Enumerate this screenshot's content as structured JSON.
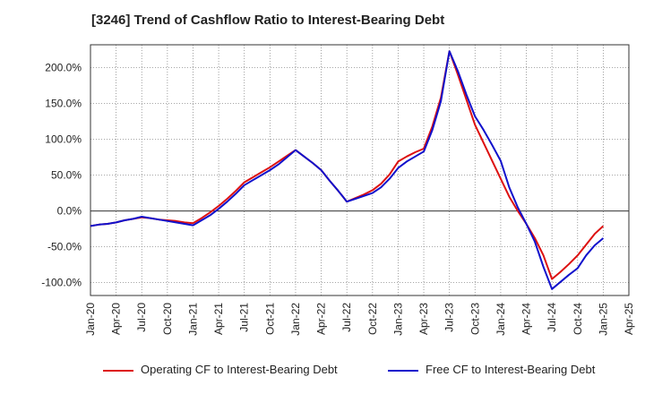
{
  "title": "[3246]  Trend of Cashflow Ratio to Interest-Bearing Debt",
  "chart_data": {
    "type": "line",
    "x": [
      "Jan-20",
      "Apr-20",
      "Jul-20",
      "Oct-20",
      "Jan-21",
      "Apr-21",
      "Jul-21",
      "Oct-21",
      "Jan-22",
      "Apr-22",
      "Jul-22",
      "Oct-22",
      "Jan-23",
      "Apr-23",
      "May-23",
      "Jun-23",
      "Jul-23",
      "Oct-23",
      "Jan-24",
      "Apr-24",
      "Jul-24",
      "Oct-24",
      "Jan-25"
    ],
    "x_ticks": [
      "Jan-20",
      "Apr-20",
      "Jul-20",
      "Oct-20",
      "Jan-21",
      "Apr-21",
      "Jul-21",
      "Oct-21",
      "Jan-22",
      "Apr-22",
      "Jul-22",
      "Oct-22",
      "Jan-23",
      "Apr-23",
      "Jul-23",
      "Oct-23",
      "Jan-24",
      "Apr-24",
      "Jul-24",
      "Oct-24",
      "Jan-25",
      "Apr-25"
    ],
    "y_ticks": [
      "200.0%",
      "150.0%",
      "100.0%",
      "50.0%",
      "0.0%",
      "-50.0%",
      "-100.0%"
    ],
    "y_tick_values": [
      200,
      150,
      100,
      50,
      0,
      -50,
      -100
    ],
    "ylim": [
      -118,
      232
    ],
    "series": [
      {
        "name": "Operating CF to Interest-Bearing Debt",
        "color": "#dd1111",
        "points": [
          [
            "Jan-20",
            -21
          ],
          [
            "Feb-20",
            -19
          ],
          [
            "Mar-20",
            -18
          ],
          [
            "Apr-20",
            -16
          ],
          [
            "May-20",
            -13
          ],
          [
            "Jun-20",
            -11
          ],
          [
            "Jul-20",
            -9
          ],
          [
            "Aug-20",
            -10
          ],
          [
            "Sep-20",
            -12
          ],
          [
            "Oct-20",
            -13
          ],
          [
            "Nov-20",
            -14
          ],
          [
            "Dec-20",
            -16
          ],
          [
            "Jan-21",
            -17
          ],
          [
            "Feb-21",
            -10
          ],
          [
            "Mar-21",
            -2
          ],
          [
            "Apr-21",
            7
          ],
          [
            "May-21",
            17
          ],
          [
            "Jun-21",
            28
          ],
          [
            "Jul-21",
            40
          ],
          [
            "Aug-21",
            47
          ],
          [
            "Sep-21",
            54
          ],
          [
            "Oct-21",
            61
          ],
          [
            "Nov-21",
            69
          ],
          [
            "Dec-21",
            77
          ],
          [
            "Jan-22",
            85
          ],
          [
            "Feb-22",
            76
          ],
          [
            "Mar-22",
            67
          ],
          [
            "Apr-22",
            57
          ],
          [
            "May-22",
            42
          ],
          [
            "Jun-22",
            28
          ],
          [
            "Jul-22",
            13
          ],
          [
            "Aug-22",
            18
          ],
          [
            "Sep-22",
            23
          ],
          [
            "Oct-22",
            29
          ],
          [
            "Nov-22",
            38
          ],
          [
            "Dec-22",
            51
          ],
          [
            "Jan-23",
            69
          ],
          [
            "Feb-23",
            76
          ],
          [
            "Mar-23",
            82
          ],
          [
            "Apr-23",
            87
          ],
          [
            "May-23",
            118
          ],
          [
            "Jun-23",
            158
          ],
          [
            "Jul-23",
            223
          ],
          [
            "Aug-23",
            190
          ],
          [
            "Sep-23",
            155
          ],
          [
            "Oct-23",
            120
          ],
          [
            "Nov-23",
            95
          ],
          [
            "Dec-23",
            70
          ],
          [
            "Jan-24",
            45
          ],
          [
            "Feb-24",
            20
          ],
          [
            "Mar-24",
            0
          ],
          [
            "Apr-24",
            -18
          ],
          [
            "May-24",
            -38
          ],
          [
            "Jun-24",
            -62
          ],
          [
            "Jul-24",
            -95
          ],
          [
            "Aug-24",
            -85
          ],
          [
            "Sep-24",
            -74
          ],
          [
            "Oct-24",
            -62
          ],
          [
            "Nov-24",
            -47
          ],
          [
            "Dec-24",
            -32
          ],
          [
            "Jan-25",
            -21
          ]
        ]
      },
      {
        "name": "Free CF to Interest-Bearing Debt",
        "color": "#1111cc",
        "points": [
          [
            "Jan-20",
            -21
          ],
          [
            "Feb-20",
            -19
          ],
          [
            "Mar-20",
            -18
          ],
          [
            "Apr-20",
            -16
          ],
          [
            "May-20",
            -13
          ],
          [
            "Jun-20",
            -11
          ],
          [
            "Jul-20",
            -8
          ],
          [
            "Aug-20",
            -10
          ],
          [
            "Sep-20",
            -12
          ],
          [
            "Oct-20",
            -14
          ],
          [
            "Nov-20",
            -16
          ],
          [
            "Dec-20",
            -18
          ],
          [
            "Jan-21",
            -20
          ],
          [
            "Feb-21",
            -13
          ],
          [
            "Mar-21",
            -6
          ],
          [
            "Apr-21",
            3
          ],
          [
            "May-21",
            13
          ],
          [
            "Jun-21",
            24
          ],
          [
            "Jul-21",
            36
          ],
          [
            "Aug-21",
            43
          ],
          [
            "Sep-21",
            50
          ],
          [
            "Oct-21",
            57
          ],
          [
            "Nov-21",
            65
          ],
          [
            "Dec-21",
            75
          ],
          [
            "Jan-22",
            85
          ],
          [
            "Feb-22",
            76
          ],
          [
            "Mar-22",
            67
          ],
          [
            "Apr-22",
            57
          ],
          [
            "May-22",
            42
          ],
          [
            "Jun-22",
            28
          ],
          [
            "Jul-22",
            13
          ],
          [
            "Aug-22",
            17
          ],
          [
            "Sep-22",
            21
          ],
          [
            "Oct-22",
            25
          ],
          [
            "Nov-22",
            33
          ],
          [
            "Dec-22",
            45
          ],
          [
            "Jan-23",
            60
          ],
          [
            "Feb-23",
            69
          ],
          [
            "Mar-23",
            76
          ],
          [
            "Apr-23",
            83
          ],
          [
            "May-23",
            113
          ],
          [
            "Jun-23",
            153
          ],
          [
            "Jul-23",
            223
          ],
          [
            "Aug-23",
            195
          ],
          [
            "Sep-23",
            162
          ],
          [
            "Oct-23",
            132
          ],
          [
            "Nov-23",
            113
          ],
          [
            "Dec-23",
            92
          ],
          [
            "Jan-24",
            70
          ],
          [
            "Feb-24",
            33
          ],
          [
            "Mar-24",
            5
          ],
          [
            "Apr-24",
            -18
          ],
          [
            "May-24",
            -43
          ],
          [
            "Jun-24",
            -78
          ],
          [
            "Jul-24",
            -109
          ],
          [
            "Aug-24",
            -99
          ],
          [
            "Sep-24",
            -89
          ],
          [
            "Oct-24",
            -80
          ],
          [
            "Nov-24",
            -62
          ],
          [
            "Dec-24",
            -48
          ],
          [
            "Jan-25",
            -38
          ]
        ]
      }
    ],
    "grid": true,
    "legend_position": "bottom"
  }
}
